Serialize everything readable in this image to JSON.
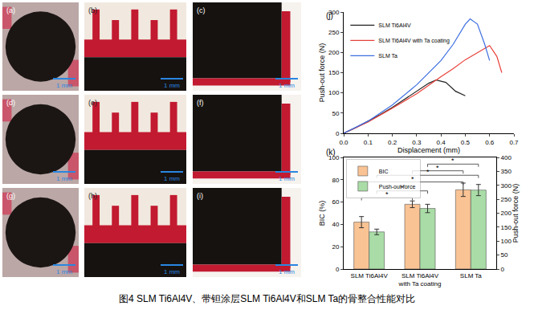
{
  "panels": [
    {
      "label": "(a)",
      "scale_bar": "1 mm"
    },
    {
      "label": "(b)",
      "scale_bar": "1 mm"
    },
    {
      "label": "(c)",
      "scale_bar": "1 mm"
    },
    {
      "label": "(d)",
      "scale_bar": "1 mm"
    },
    {
      "label": "(e)",
      "scale_bar": "1 mm"
    },
    {
      "label": "(f)",
      "scale_bar": "1 mm"
    },
    {
      "label": "(g)",
      "scale_bar": "1 mm"
    },
    {
      "label": "(h)",
      "scale_bar": "1 mm"
    },
    {
      "label": "(i)",
      "scale_bar": "1 mm"
    }
  ],
  "caption": "图4 SLM Ti6Al4V、带钽涂层SLM Ti6Al4V和SLM Ta的骨整合性能对比",
  "chart_data": [
    {
      "type": "line",
      "panel_label": "(j)",
      "xlabel": "Displacement (mm)",
      "ylabel": "Push-out force (N)",
      "legend": "upper left",
      "xlim": [
        0,
        0.7
      ],
      "xticks": [
        {
          "value": 0,
          "label": "0.0"
        },
        0.1,
        0.2,
        0.3,
        0.4,
        0.5,
        0.6,
        0.7
      ],
      "ylim": [
        0,
        300
      ],
      "yticks": [
        0,
        50,
        100,
        150,
        200,
        250,
        300
      ],
      "series": [
        {
          "name": "SLM Ti6Al4V",
          "color": "#222222",
          "x": [
            0,
            0.05,
            0.1,
            0.15,
            0.2,
            0.25,
            0.3,
            0.35,
            0.38,
            0.42,
            0.46,
            0.5
          ],
          "values": [
            0,
            14,
            30,
            46,
            64,
            84,
            104,
            124,
            132,
            126,
            104,
            93
          ]
        },
        {
          "name": "SLM Ti6Al4V with Ta coating",
          "color": "#e8413a",
          "x": [
            0,
            0.1,
            0.2,
            0.3,
            0.4,
            0.45,
            0.5,
            0.55,
            0.6,
            0.63,
            0.65
          ],
          "values": [
            0,
            28,
            62,
            98,
            140,
            160,
            182,
            200,
            217,
            190,
            150
          ]
        },
        {
          "name": "SLM Ta",
          "color": "#3d6fe0",
          "x": [
            0,
            0.1,
            0.2,
            0.3,
            0.4,
            0.45,
            0.5,
            0.52,
            0.55,
            0.58,
            0.6
          ],
          "values": [
            0,
            30,
            70,
            120,
            180,
            220,
            270,
            283,
            270,
            220,
            180
          ]
        }
      ]
    },
    {
      "type": "bar",
      "panel_label": "(k)",
      "ylabel": "BIC (%)",
      "y2label": "Push-out force (N)",
      "legend": "upper left",
      "categories": [
        "SLM Ti6Al4V",
        "SLM Ti6Al4V with Ta coating",
        "SLM Ta"
      ],
      "ylim": [
        0,
        100
      ],
      "yticks": [
        0,
        20,
        40,
        60,
        80,
        100
      ],
      "y2lim": [
        0,
        400
      ],
      "y2ticks": [
        0,
        50,
        100,
        150,
        200,
        250,
        300,
        350,
        400
      ],
      "series": [
        {
          "name": "BIC",
          "color": "#f9c394",
          "values": [
            42,
            58,
            71
          ],
          "error": [
            5,
            3,
            6
          ]
        },
        {
          "name": "Push-out force",
          "color": "#a9dca6",
          "axis": "y2",
          "values": [
            133,
            217,
            283
          ],
          "error": [
            10,
            15,
            20
          ]
        }
      ],
      "significance": [
        {
          "from": 0,
          "to": 1,
          "series": "BIC",
          "y": 64,
          "label": "*"
        },
        {
          "from": 0,
          "to": 1,
          "series": "Push-out force",
          "y": 70,
          "label": "*"
        },
        {
          "from": 0,
          "to": 2,
          "series": "BIC",
          "y": 78,
          "label": "*"
        },
        {
          "from": 0,
          "to": 2,
          "series": "Push-out force",
          "y": 84,
          "label": "*"
        },
        {
          "from": 1,
          "to": 2,
          "series": "BIC",
          "y": 88,
          "label": "*"
        },
        {
          "from": 1,
          "to": 2,
          "series": "Push-out force",
          "y": 94,
          "label": "*"
        }
      ]
    }
  ]
}
